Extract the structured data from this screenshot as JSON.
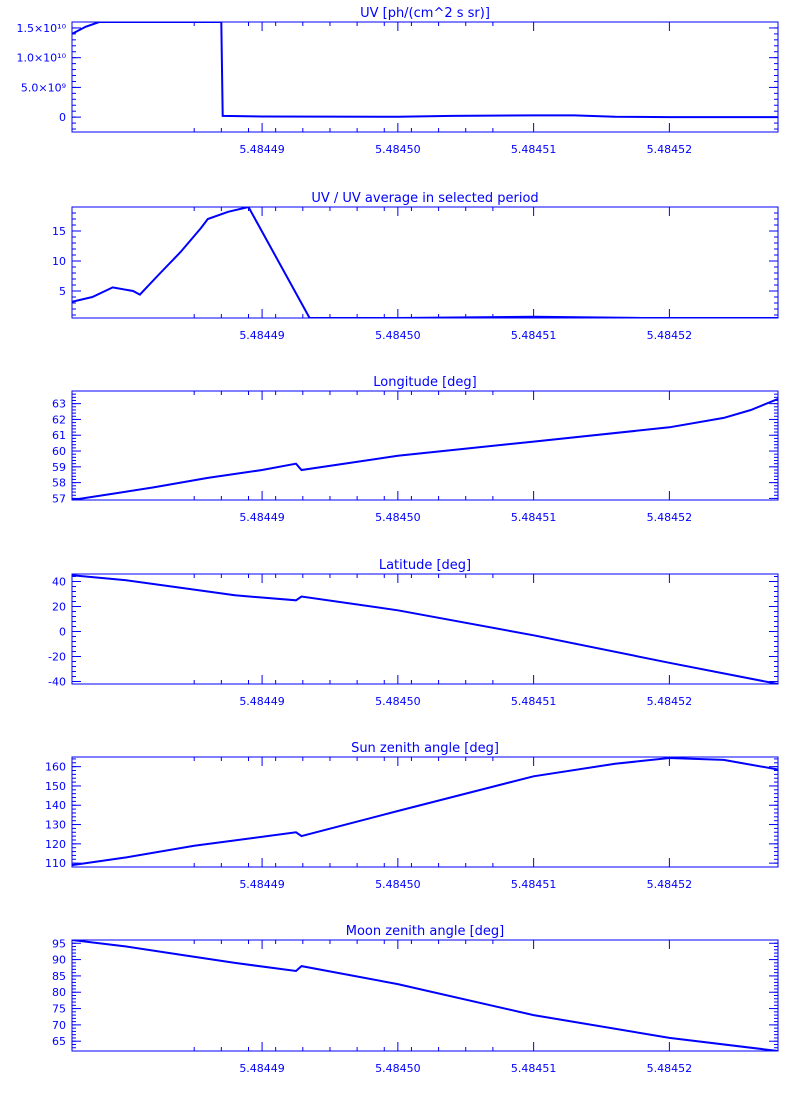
{
  "charts": [
    {
      "type": "line",
      "title": "UV [ph/(cm^2 s sr)]",
      "ylim": [
        -2500000000.0,
        16000000000.0
      ],
      "yticks": [
        {
          "value": 0,
          "label": "0"
        },
        {
          "value": 5000000000.0,
          "label": "5.0×10⁹"
        },
        {
          "value": 10000000000.0,
          "label": "1.0×10¹⁰"
        },
        {
          "value": 15000000000.0,
          "label": "1.5×10¹⁰"
        }
      ],
      "series": [
        {
          "points": [
            [
              5.484476,
              14000000000.0
            ],
            [
              5.484477,
              15200000000.0
            ],
            [
              5.484478,
              16000000000.0
            ],
            [
              5.4844835,
              16000000000.0
            ],
            [
              5.484487,
              16000000000.0
            ],
            [
              5.4844871,
              200000000.0
            ],
            [
              5.48449,
              100000000.0
            ],
            [
              5.4845,
              50000000.0
            ],
            [
              5.484504,
              200000000.0
            ],
            [
              5.48451,
              300000000.0
            ],
            [
              5.484513,
              300000000.0
            ],
            [
              5.484516,
              80000000.0
            ],
            [
              5.48452,
              0
            ],
            [
              5.484528,
              0
            ]
          ]
        }
      ]
    },
    {
      "type": "line",
      "title": "UV / UV average in selected period",
      "ylim": [
        0.5,
        19
      ],
      "yticks": [
        {
          "value": 5,
          "label": "5"
        },
        {
          "value": 10,
          "label": "10"
        },
        {
          "value": 15,
          "label": "15"
        }
      ],
      "series": [
        {
          "points": [
            [
              5.484476,
              3.2
            ],
            [
              5.4844775,
              4.0
            ],
            [
              5.484479,
              5.6
            ],
            [
              5.4844805,
              5.0
            ],
            [
              5.484481,
              4.4
            ],
            [
              5.4844825,
              8.0
            ],
            [
              5.484484,
              11.5
            ],
            [
              5.4844855,
              15.5
            ],
            [
              5.484486,
              17.0
            ],
            [
              5.4844875,
              18.2
            ],
            [
              5.484489,
              19.0
            ],
            [
              5.4844935,
              0.5
            ],
            [
              5.4845,
              0.5
            ],
            [
              5.48451,
              0.7
            ],
            [
              5.484518,
              0.5
            ],
            [
              5.484528,
              0.5
            ]
          ]
        }
      ]
    },
    {
      "type": "line",
      "title": "Longitude [deg]",
      "ylim": [
        56.9,
        63.8
      ],
      "yticks": [
        {
          "value": 57,
          "label": "57"
        },
        {
          "value": 58,
          "label": "58"
        },
        {
          "value": 59,
          "label": "59"
        },
        {
          "value": 60,
          "label": "60"
        },
        {
          "value": 61,
          "label": "61"
        },
        {
          "value": 62,
          "label": "62"
        },
        {
          "value": 63,
          "label": "63"
        }
      ],
      "series": [
        {
          "points": [
            [
              5.484476,
              56.9
            ],
            [
              5.484479,
              57.3
            ],
            [
              5.484482,
              57.7
            ],
            [
              5.484486,
              58.3
            ],
            [
              5.48449,
              58.8
            ],
            [
              5.4844925,
              59.2
            ],
            [
              5.4844929,
              58.8
            ],
            [
              5.4845,
              59.7
            ],
            [
              5.48451,
              60.6
            ],
            [
              5.48452,
              61.5
            ],
            [
              5.484524,
              62.1
            ],
            [
              5.484526,
              62.6
            ],
            [
              5.484528,
              63.3
            ]
          ]
        }
      ]
    },
    {
      "type": "line",
      "title": "Latitude [deg]",
      "ylim": [
        -42,
        46
      ],
      "yticks": [
        {
          "value": -40,
          "label": "-40"
        },
        {
          "value": -20,
          "label": "-20"
        },
        {
          "value": 0,
          "label": "0"
        },
        {
          "value": 20,
          "label": "20"
        },
        {
          "value": 40,
          "label": "40"
        }
      ],
      "series": [
        {
          "points": [
            [
              5.484476,
              45
            ],
            [
              5.48448,
              41
            ],
            [
              5.484484,
              35
            ],
            [
              5.484488,
              29
            ],
            [
              5.4844925,
              25
            ],
            [
              5.4844929,
              28
            ],
            [
              5.4845,
              17
            ],
            [
              5.48451,
              -3
            ],
            [
              5.48452,
              -25
            ],
            [
              5.484528,
              -42
            ]
          ]
        }
      ]
    },
    {
      "type": "line",
      "title": "Sun zenith angle [deg]",
      "ylim": [
        108,
        165
      ],
      "yticks": [
        {
          "value": 110,
          "label": "110"
        },
        {
          "value": 120,
          "label": "120"
        },
        {
          "value": 130,
          "label": "130"
        },
        {
          "value": 140,
          "label": "140"
        },
        {
          "value": 150,
          "label": "150"
        },
        {
          "value": 160,
          "label": "160"
        }
      ],
      "series": [
        {
          "points": [
            [
              5.484476,
              109
            ],
            [
              5.48448,
              113
            ],
            [
              5.484485,
              119
            ],
            [
              5.4844925,
              126
            ],
            [
              5.4844929,
              124
            ],
            [
              5.4845,
              137
            ],
            [
              5.48451,
              155
            ],
            [
              5.484516,
              161.5
            ],
            [
              5.48452,
              164.5
            ],
            [
              5.484524,
              163.5
            ],
            [
              5.484528,
              158.5
            ]
          ]
        }
      ]
    },
    {
      "type": "line",
      "title": "Moon zenith angle [deg]",
      "ylim": [
        62,
        96
      ],
      "yticks": [
        {
          "value": 65,
          "label": "65"
        },
        {
          "value": 70,
          "label": "70"
        },
        {
          "value": 75,
          "label": "75"
        },
        {
          "value": 80,
          "label": "80"
        },
        {
          "value": 85,
          "label": "85"
        },
        {
          "value": 90,
          "label": "90"
        },
        {
          "value": 95,
          "label": "95"
        }
      ],
      "series": [
        {
          "points": [
            [
              5.484476,
              96
            ],
            [
              5.48448,
              94
            ],
            [
              5.484484,
              91.5
            ],
            [
              5.484488,
              89
            ],
            [
              5.4844925,
              86.5
            ],
            [
              5.4844929,
              88
            ],
            [
              5.4845,
              82.5
            ],
            [
              5.48451,
              73
            ],
            [
              5.48452,
              66
            ],
            [
              5.484528,
              62
            ]
          ]
        }
      ]
    }
  ],
  "xaxis": {
    "xlim": [
      5.484476,
      5.484528
    ],
    "ticks": [
      {
        "value": 5.48449,
        "label": "5.48449"
      },
      {
        "value": 5.4845,
        "label": "5.48450"
      },
      {
        "value": 5.48451,
        "label": "5.48451"
      },
      {
        "value": 5.48452,
        "label": "5.48452"
      }
    ]
  },
  "color": "#0000ff"
}
